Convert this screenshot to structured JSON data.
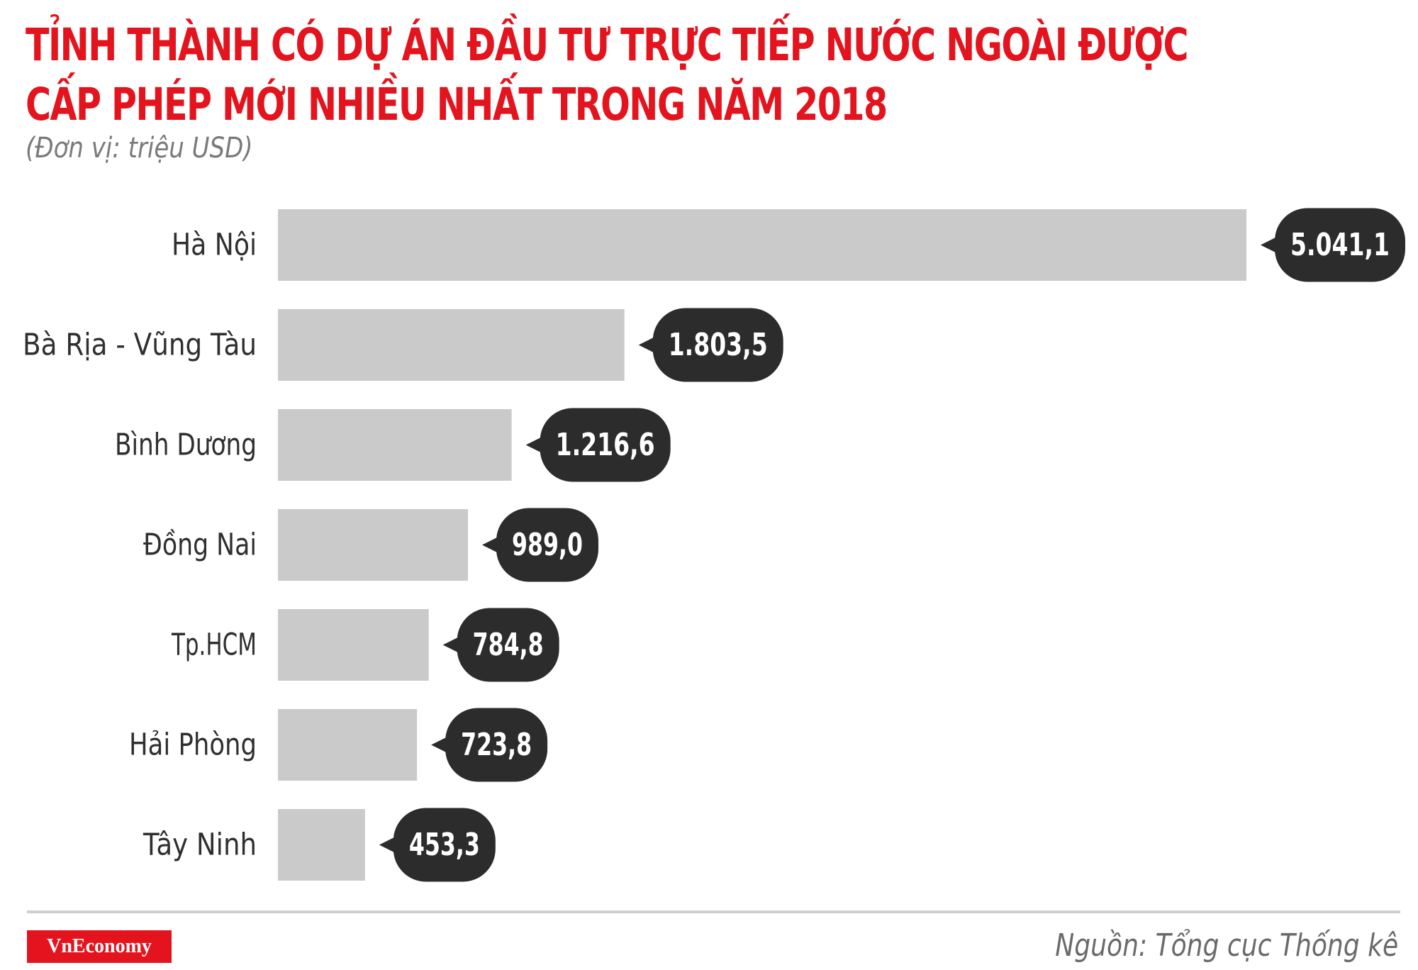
{
  "title_lines": [
    "TỈNH THÀNH CÓ DỰ ÁN ĐẦU TƯ TRỰC TIẾP NƯỚC NGOÀI ĐƯỢC",
    "CẤP PHÉP MỚI NHIỀU NHẤT TRONG NĂM 2018"
  ],
  "subtitle": "(Đơn vị: triệu USD)",
  "chart_data": {
    "type": "bar",
    "orientation": "horizontal",
    "categories": [
      "Hà Nội",
      "Bà Rịa - Vũng Tàu",
      "Bình Dương",
      "Đồng Nai",
      "Tp.HCM",
      "Hải Phòng",
      "Tây Ninh"
    ],
    "values": [
      5041.1,
      1803.5,
      1216.6,
      989.0,
      784.8,
      723.8,
      453.3
    ],
    "value_labels": [
      "5.041,1",
      "1.803,5",
      "1.216,6",
      "989,0",
      "784,8",
      "723,8",
      "453,3"
    ],
    "unit": "triệu USD",
    "xlim": [
      0,
      5041.1
    ],
    "grid": false,
    "legend": "none",
    "bar_color": "#cbcacb",
    "label_bubble_color": "#2c2c2c"
  },
  "footer": {
    "logo_text": "VnEconomy",
    "source": "Nguồn: Tổng cục Thống kê"
  },
  "colors": {
    "title": "#e3141e",
    "logo_background": "#e3141e"
  }
}
